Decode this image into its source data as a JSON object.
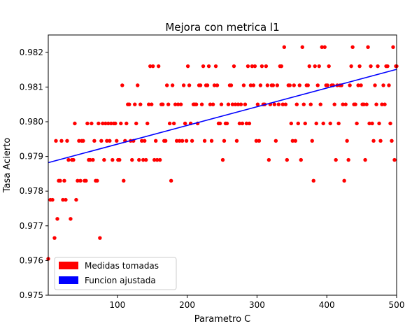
{
  "chart_data": {
    "type": "scatter",
    "title": "Mejora con metrica l1",
    "xlabel": "Parametro C",
    "ylabel": "Tasa Acierto",
    "xlim": [
      1,
      500
    ],
    "ylim": [
      0.975,
      0.9825
    ],
    "xticks": [
      100,
      200,
      300,
      400,
      500
    ],
    "yticks": [
      0.975,
      0.976,
      0.977,
      0.978,
      0.979,
      0.98,
      0.981,
      0.982
    ],
    "grid": false,
    "legend_position": "lower-left",
    "series": [
      {
        "name": "Medidas tomadas",
        "kind": "scatter",
        "color": "#ff0000",
        "points": [
          [
            1,
            0.97605
          ],
          [
            4,
            0.97775
          ],
          [
            7,
            0.97775
          ],
          [
            10,
            0.97665
          ],
          [
            12,
            0.97945
          ],
          [
            14,
            0.9772
          ],
          [
            16,
            0.9783
          ],
          [
            18,
            0.9783
          ],
          [
            20,
            0.97945
          ],
          [
            22,
            0.97775
          ],
          [
            24,
            0.9783
          ],
          [
            26,
            0.97775
          ],
          [
            28,
            0.97945
          ],
          [
            30,
            0.9789
          ],
          [
            33,
            0.9772
          ],
          [
            35,
            0.9789
          ],
          [
            37,
            0.9789
          ],
          [
            39,
            0.97995
          ],
          [
            41,
            0.97775
          ],
          [
            43,
            0.9783
          ],
          [
            45,
            0.97945
          ],
          [
            47,
            0.9783
          ],
          [
            49,
            0.97945
          ],
          [
            51,
            0.97945
          ],
          [
            53,
            0.9783
          ],
          [
            55,
            0.9783
          ],
          [
            57,
            0.97995
          ],
          [
            59,
            0.9789
          ],
          [
            61,
            0.9789
          ],
          [
            63,
            0.97995
          ],
          [
            65,
            0.9789
          ],
          [
            67,
            0.97945
          ],
          [
            69,
            0.9783
          ],
          [
            71,
            0.9783
          ],
          [
            73,
            0.97995
          ],
          [
            75,
            0.97665
          ],
          [
            77,
            0.97945
          ],
          [
            79,
            0.97995
          ],
          [
            81,
            0.9789
          ],
          [
            83,
            0.97995
          ],
          [
            85,
            0.97945
          ],
          [
            87,
            0.97995
          ],
          [
            89,
            0.97945
          ],
          [
            91,
            0.97995
          ],
          [
            93,
            0.9789
          ],
          [
            95,
            0.97995
          ],
          [
            97,
            0.97995
          ],
          [
            99,
            0.97945
          ],
          [
            101,
            0.9789
          ],
          [
            103,
            0.9789
          ],
          [
            105,
            0.97995
          ],
          [
            107,
            0.98105
          ],
          [
            109,
            0.9783
          ],
          [
            111,
            0.97945
          ],
          [
            113,
            0.97995
          ],
          [
            115,
            0.9805
          ],
          [
            117,
            0.9805
          ],
          [
            119,
            0.97945
          ],
          [
            121,
            0.9789
          ],
          [
            123,
            0.97945
          ],
          [
            125,
            0.9805
          ],
          [
            127,
            0.97995
          ],
          [
            129,
            0.98105
          ],
          [
            131,
            0.9789
          ],
          [
            133,
            0.9805
          ],
          [
            135,
            0.97945
          ],
          [
            137,
            0.9789
          ],
          [
            139,
            0.97945
          ],
          [
            141,
            0.9789
          ],
          [
            143,
            0.97995
          ],
          [
            145,
            0.9805
          ],
          [
            147,
            0.9816
          ],
          [
            149,
            0.9805
          ],
          [
            151,
            0.9816
          ],
          [
            153,
            0.9789
          ],
          [
            155,
            0.97945
          ],
          [
            157,
            0.9789
          ],
          [
            159,
            0.9816
          ],
          [
            161,
            0.9789
          ],
          [
            163,
            0.9805
          ],
          [
            165,
            0.9805
          ],
          [
            167,
            0.97945
          ],
          [
            169,
            0.97945
          ],
          [
            171,
            0.98105
          ],
          [
            173,
            0.9805
          ],
          [
            175,
            0.97995
          ],
          [
            177,
            0.9783
          ],
          [
            179,
            0.98105
          ],
          [
            181,
            0.97995
          ],
          [
            183,
            0.9805
          ],
          [
            185,
            0.97945
          ],
          [
            187,
            0.9805
          ],
          [
            189,
            0.97945
          ],
          [
            191,
            0.9805
          ],
          [
            193,
            0.97945
          ],
          [
            195,
            0.98105
          ],
          [
            197,
            0.97995
          ],
          [
            199,
            0.97945
          ],
          [
            201,
            0.9816
          ],
          [
            203,
            0.98105
          ],
          [
            205,
            0.97995
          ],
          [
            207,
            0.97945
          ],
          [
            209,
            0.9805
          ],
          [
            211,
            0.9805
          ],
          [
            213,
            0.9805
          ],
          [
            215,
            0.97995
          ],
          [
            217,
            0.98105
          ],
          [
            219,
            0.98105
          ],
          [
            221,
            0.9805
          ],
          [
            223,
            0.9816
          ],
          [
            225,
            0.97945
          ],
          [
            227,
            0.98105
          ],
          [
            229,
            0.98105
          ],
          [
            231,
            0.9816
          ],
          [
            233,
            0.9805
          ],
          [
            235,
            0.97945
          ],
          [
            237,
            0.9805
          ],
          [
            239,
            0.98105
          ],
          [
            241,
            0.9816
          ],
          [
            243,
            0.98105
          ],
          [
            245,
            0.97995
          ],
          [
            247,
            0.97995
          ],
          [
            249,
            0.9805
          ],
          [
            251,
            0.9789
          ],
          [
            253,
            0.97945
          ],
          [
            255,
            0.97995
          ],
          [
            257,
            0.97995
          ],
          [
            259,
            0.9805
          ],
          [
            261,
            0.98105
          ],
          [
            263,
            0.98105
          ],
          [
            265,
            0.9805
          ],
          [
            267,
            0.9816
          ],
          [
            269,
            0.9805
          ],
          [
            271,
            0.97945
          ],
          [
            273,
            0.9805
          ],
          [
            275,
            0.97995
          ],
          [
            277,
            0.9805
          ],
          [
            279,
            0.97995
          ],
          [
            281,
            0.98105
          ],
          [
            283,
            0.9805
          ],
          [
            285,
            0.97995
          ],
          [
            287,
            0.9816
          ],
          [
            289,
            0.97995
          ],
          [
            291,
            0.98105
          ],
          [
            293,
            0.9816
          ],
          [
            295,
            0.98105
          ],
          [
            297,
            0.9816
          ],
          [
            299,
            0.97945
          ],
          [
            301,
            0.9805
          ],
          [
            303,
            0.97945
          ],
          [
            305,
            0.98105
          ],
          [
            307,
            0.9816
          ],
          [
            309,
            0.9805
          ],
          [
            311,
            0.9805
          ],
          [
            313,
            0.9816
          ],
          [
            315,
            0.98105
          ],
          [
            317,
            0.9789
          ],
          [
            319,
            0.9805
          ],
          [
            321,
            0.98105
          ],
          [
            323,
            0.98105
          ],
          [
            325,
            0.9805
          ],
          [
            327,
            0.97945
          ],
          [
            329,
            0.98105
          ],
          [
            331,
            0.9805
          ],
          [
            333,
            0.9816
          ],
          [
            335,
            0.9816
          ],
          [
            337,
            0.9805
          ],
          [
            339,
            0.98215
          ],
          [
            341,
            0.9805
          ],
          [
            343,
            0.9789
          ],
          [
            345,
            0.98105
          ],
          [
            347,
            0.98105
          ],
          [
            349,
            0.97995
          ],
          [
            351,
            0.97945
          ],
          [
            353,
            0.98105
          ],
          [
            355,
            0.97945
          ],
          [
            357,
            0.9805
          ],
          [
            359,
            0.97995
          ],
          [
            361,
            0.98105
          ],
          [
            363,
            0.9789
          ],
          [
            365,
            0.98215
          ],
          [
            367,
            0.9805
          ],
          [
            369,
            0.97995
          ],
          [
            371,
            0.98105
          ],
          [
            373,
            0.98105
          ],
          [
            375,
            0.9816
          ],
          [
            377,
            0.9805
          ],
          [
            379,
            0.97945
          ],
          [
            381,
            0.9783
          ],
          [
            383,
            0.9816
          ],
          [
            385,
            0.97995
          ],
          [
            387,
            0.98105
          ],
          [
            389,
            0.9816
          ],
          [
            391,
            0.9805
          ],
          [
            393,
            0.98215
          ],
          [
            395,
            0.97995
          ],
          [
            397,
            0.98215
          ],
          [
            399,
            0.98105
          ],
          [
            401,
            0.98105
          ],
          [
            403,
            0.9816
          ],
          [
            405,
            0.97995
          ],
          [
            407,
            0.98105
          ],
          [
            409,
            0.98105
          ],
          [
            411,
            0.9805
          ],
          [
            413,
            0.9789
          ],
          [
            415,
            0.98105
          ],
          [
            417,
            0.97995
          ],
          [
            419,
            0.98105
          ],
          [
            421,
            0.98105
          ],
          [
            423,
            0.9805
          ],
          [
            425,
            0.9783
          ],
          [
            427,
            0.9805
          ],
          [
            429,
            0.97945
          ],
          [
            431,
            0.9789
          ],
          [
            433,
            0.98105
          ],
          [
            435,
            0.9816
          ],
          [
            437,
            0.98215
          ],
          [
            439,
            0.9805
          ],
          [
            441,
            0.9805
          ],
          [
            443,
            0.97995
          ],
          [
            445,
            0.98105
          ],
          [
            447,
            0.9816
          ],
          [
            449,
            0.98105
          ],
          [
            451,
            0.9805
          ],
          [
            453,
            0.9805
          ],
          [
            455,
            0.9789
          ],
          [
            457,
            0.9805
          ],
          [
            459,
            0.98215
          ],
          [
            461,
            0.97995
          ],
          [
            463,
            0.9816
          ],
          [
            465,
            0.97995
          ],
          [
            467,
            0.97945
          ],
          [
            469,
            0.98105
          ],
          [
            471,
            0.9805
          ],
          [
            473,
            0.9816
          ],
          [
            475,
            0.97995
          ],
          [
            477,
            0.97945
          ],
          [
            479,
            0.9805
          ],
          [
            481,
            0.98105
          ],
          [
            483,
            0.9805
          ],
          [
            485,
            0.9816
          ],
          [
            487,
            0.9816
          ],
          [
            489,
            0.98105
          ],
          [
            491,
            0.97995
          ],
          [
            493,
            0.97945
          ],
          [
            495,
            0.98215
          ],
          [
            497,
            0.9789
          ],
          [
            499,
            0.9816
          ],
          [
            500,
            0.9816
          ]
        ]
      },
      {
        "name": "Funcion ajustada",
        "kind": "line",
        "color": "#0000ff",
        "x": [
          1,
          500
        ],
        "y": [
          0.97882,
          0.98151
        ]
      }
    ]
  }
}
